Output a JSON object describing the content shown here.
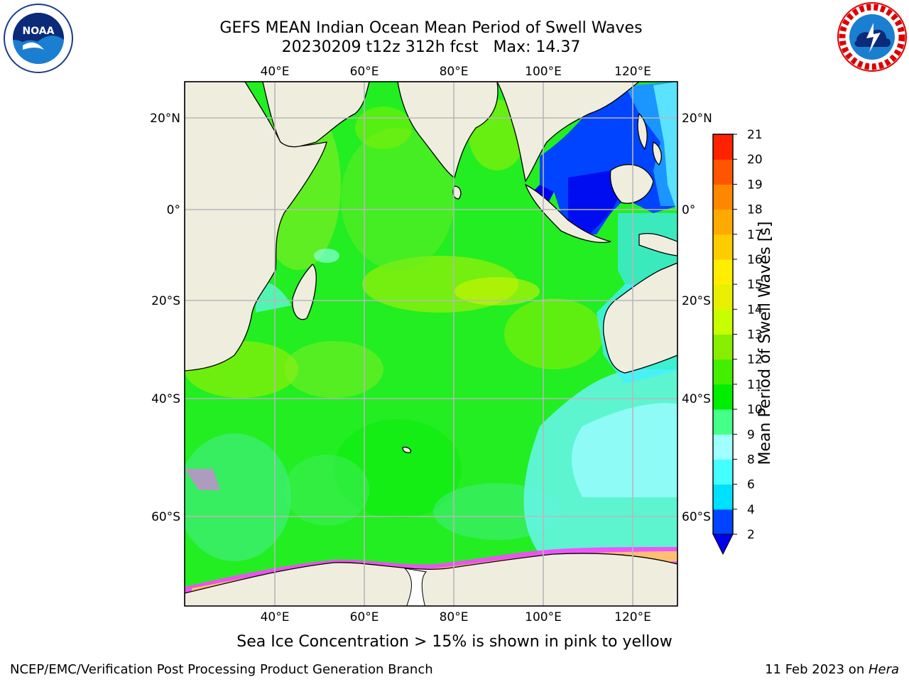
{
  "title_line1": "GEFS MEAN Indian Ocean Mean Period of Swell Waves",
  "title_line2": "20230209 t12z 312h fcst   Max: 14.37",
  "map": {
    "longitude_ticks": [
      "40°E",
      "60°E",
      "80°E",
      "100°E",
      "120°E"
    ],
    "latitude_ticks": [
      "20°N",
      "0°",
      "20°S",
      "40°S",
      "60°S"
    ],
    "extent": {
      "lon": [
        20,
        130
      ],
      "lat": [
        -75,
        27
      ]
    },
    "colors": {
      "land": "#efedde",
      "coast": "#000000",
      "grid": "#b8b8b8",
      "ocean_main": "#22ee22",
      "ice": "#ff44ff"
    }
  },
  "colorbar": {
    "label": "Mean Period of Swell Waves [s]",
    "ticks": [
      "2",
      "4",
      "6",
      "8",
      "9",
      "10",
      "11",
      "12",
      "13",
      "14",
      "15",
      "16",
      "17",
      "18",
      "19",
      "20",
      "21"
    ],
    "colors": [
      "#0044ff",
      "#00e0ff",
      "#44ffff",
      "#a0ffff",
      "#44ff88",
      "#00ee00",
      "#44ee00",
      "#88ee00",
      "#c8ff00",
      "#e8f000",
      "#ffee00",
      "#ffcc00",
      "#ffaa00",
      "#ff8800",
      "#ff5500",
      "#ff2200"
    ],
    "under_color": "#0000ee"
  },
  "ice_note": "Sea Ice Concentration > 15% is shown in pink to yellow",
  "footer": {
    "left": "NCEP/EMC/Verification Post Processing Product Generation Branch",
    "right_date": "11 Feb 2023 on ",
    "right_host": "Hera"
  },
  "logos": {
    "left": "noaa-logo",
    "right": "nws-logo"
  }
}
